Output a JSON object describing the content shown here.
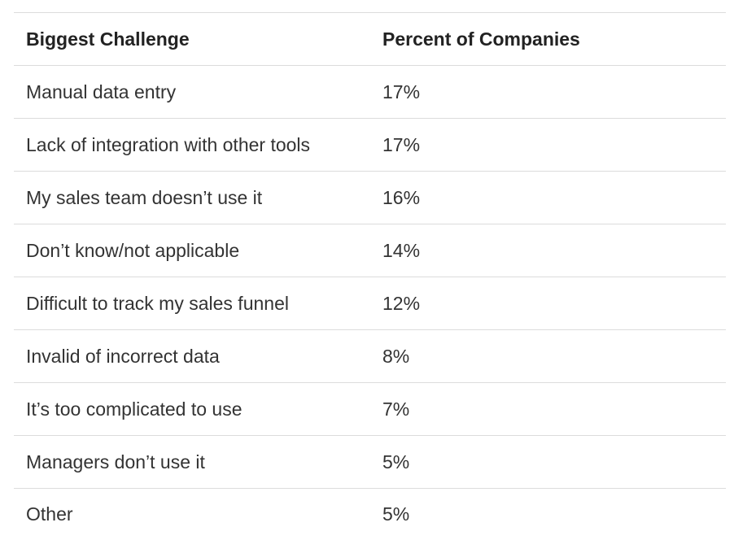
{
  "table": {
    "headers": [
      "Biggest Challenge",
      "Percent of Companies"
    ],
    "rows": [
      [
        "Manual data entry",
        "17%"
      ],
      [
        "Lack of integration with other tools",
        "17%"
      ],
      [
        "My sales team doesn’t use it",
        "16%"
      ],
      [
        "Don’t know/not applicable",
        "14%"
      ],
      [
        "Difficult to track my sales funnel",
        "12%"
      ],
      [
        "Invalid of incorrect data",
        "8%"
      ],
      [
        "It’s too complicated to use",
        "7%"
      ],
      [
        "Managers don’t use it",
        "5%"
      ],
      [
        "Other",
        "5%"
      ]
    ]
  }
}
